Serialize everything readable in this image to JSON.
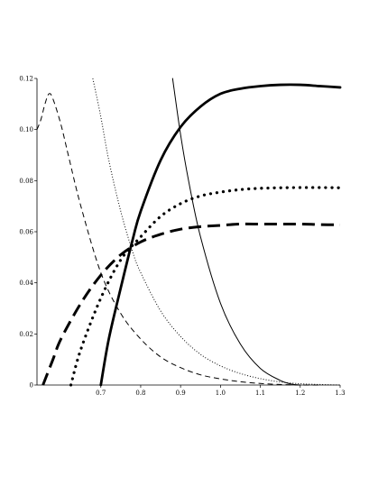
{
  "chart_data": {
    "type": "line",
    "title": "",
    "xlabel": "",
    "ylabel": "",
    "xlim": [
      0.54,
      1.3
    ],
    "ylim": [
      0,
      0.12
    ],
    "grid": false,
    "x_ticks": [
      0.7,
      0.8,
      0.9,
      1.0,
      1.1,
      1.2,
      1.3
    ],
    "x_tick_labels": [
      "0.7",
      "0.8",
      "0.9",
      "1.0",
      "1.1",
      "1.2",
      "1.3"
    ],
    "y_ticks": [
      0,
      0.02,
      0.04,
      0.06,
      0.08,
      0.1,
      0.12
    ],
    "y_tick_labels": [
      "0",
      "0.02",
      "0.04",
      "0.06",
      "0.08",
      "0.10",
      "0.12"
    ],
    "series": [
      {
        "style": "thick-solid",
        "color": "#000000",
        "x": [
          0.7,
          0.72,
          0.75,
          0.78,
          0.8,
          0.85,
          0.9,
          0.95,
          1.0,
          1.05,
          1.1,
          1.15,
          1.2,
          1.25,
          1.3
        ],
        "y": [
          0.0,
          0.018,
          0.038,
          0.057,
          0.068,
          0.088,
          0.101,
          0.109,
          0.114,
          0.116,
          0.117,
          0.1175,
          0.1175,
          0.117,
          0.1165
        ]
      },
      {
        "style": "thick-dotted",
        "color": "#000000",
        "x": [
          0.625,
          0.65,
          0.7,
          0.75,
          0.8,
          0.85,
          0.9,
          0.95,
          1.0,
          1.05,
          1.1,
          1.15,
          1.2,
          1.25,
          1.3
        ],
        "y": [
          0.0,
          0.014,
          0.034,
          0.049,
          0.058,
          0.066,
          0.071,
          0.074,
          0.0755,
          0.0765,
          0.077,
          0.0772,
          0.0773,
          0.0773,
          0.0772
        ]
      },
      {
        "style": "thick-dashed",
        "color": "#000000",
        "x": [
          0.555,
          0.58,
          0.6,
          0.65,
          0.7,
          0.75,
          0.8,
          0.85,
          0.9,
          0.95,
          1.0,
          1.05,
          1.1,
          1.15,
          1.2,
          1.25,
          1.3
        ],
        "y": [
          0.0,
          0.01,
          0.018,
          0.032,
          0.043,
          0.051,
          0.056,
          0.059,
          0.061,
          0.062,
          0.0625,
          0.063,
          0.063,
          0.063,
          0.063,
          0.0628,
          0.0627
        ]
      },
      {
        "style": "thin-dashed",
        "color": "#000000",
        "x": [
          0.54,
          0.55,
          0.56,
          0.57,
          0.58,
          0.6,
          0.62,
          0.65,
          0.7,
          0.75,
          0.8,
          0.85,
          0.9,
          0.95,
          1.0,
          1.05,
          1.1,
          1.15,
          1.2,
          1.25
        ],
        "y": [
          0.1,
          0.104,
          0.11,
          0.114,
          0.112,
          0.102,
          0.089,
          0.07,
          0.044,
          0.028,
          0.018,
          0.011,
          0.0068,
          0.004,
          0.0024,
          0.0013,
          0.0006,
          0.0002,
          0.0,
          0.0
        ]
      },
      {
        "style": "thin-dotted",
        "color": "#000000",
        "x": [
          0.68,
          0.7,
          0.72,
          0.75,
          0.78,
          0.8,
          0.85,
          0.9,
          0.95,
          1.0,
          1.05,
          1.1,
          1.15,
          1.2,
          1.25,
          1.3
        ],
        "y": [
          0.12,
          0.105,
          0.088,
          0.068,
          0.052,
          0.044,
          0.029,
          0.019,
          0.012,
          0.0075,
          0.0045,
          0.0025,
          0.0012,
          0.0005,
          0.0002,
          0.0
        ]
      },
      {
        "style": "thin-solid",
        "color": "#000000",
        "x": [
          0.88,
          0.9,
          0.92,
          0.95,
          1.0,
          1.05,
          1.1,
          1.15,
          1.18,
          1.2
        ],
        "y": [
          0.12,
          0.098,
          0.08,
          0.058,
          0.032,
          0.016,
          0.0065,
          0.0018,
          0.0003,
          0.0
        ]
      }
    ]
  }
}
